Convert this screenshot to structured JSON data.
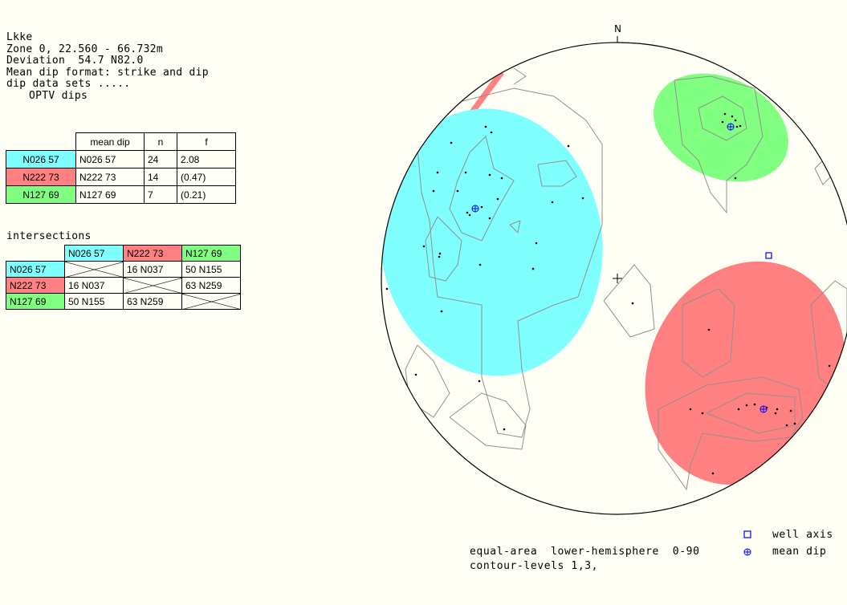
{
  "header": {
    "title": "Lkke",
    "zone": "Zone 0, 22.560 - 66.732m",
    "deviation": "Deviation  54.7 N82.0",
    "format": "Mean dip format: strike and dip",
    "sets_label": "dip data sets .....",
    "source": "OPTV dips"
  },
  "sets_table": {
    "headers": [
      "mean dip",
      "n",
      "f"
    ],
    "rows": [
      {
        "label": "N026 57",
        "mean": "N026 57",
        "n": "24",
        "f": "2.08",
        "color": "#80ffff"
      },
      {
        "label": "N222 73",
        "mean": "N222 73",
        "n": "14",
        "f": "(0.47)",
        "color": "#ff8080"
      },
      {
        "label": "N127 69",
        "mean": "N127 69",
        "n": "7",
        "f": "(0.21)",
        "color": "#80ff80"
      }
    ]
  },
  "intersections": {
    "title": "intersections",
    "cols": [
      "N026 57",
      "N222 73",
      "N127 69"
    ],
    "rows": [
      {
        "label": "N026 57",
        "cells": [
          "",
          "16 N037",
          "50 N155"
        ]
      },
      {
        "label": "N222 73",
        "cells": [
          "16 N037",
          "",
          "63 N259"
        ]
      },
      {
        "label": "N127 69",
        "cells": [
          "50 N155",
          "63 N259",
          ""
        ]
      }
    ]
  },
  "net": {
    "north_label": "N",
    "colors": {
      "cyan": "#80ffff",
      "red": "#ff8080",
      "green": "#80ff80",
      "contour": "#909090",
      "mean_dip": "#0000ff"
    }
  },
  "legend": {
    "well_axis": "well axis",
    "mean_dip": "mean dip",
    "projection": "equal-area  lower-hemisphere  0-90",
    "contours": "contour-levels 1,3,"
  }
}
